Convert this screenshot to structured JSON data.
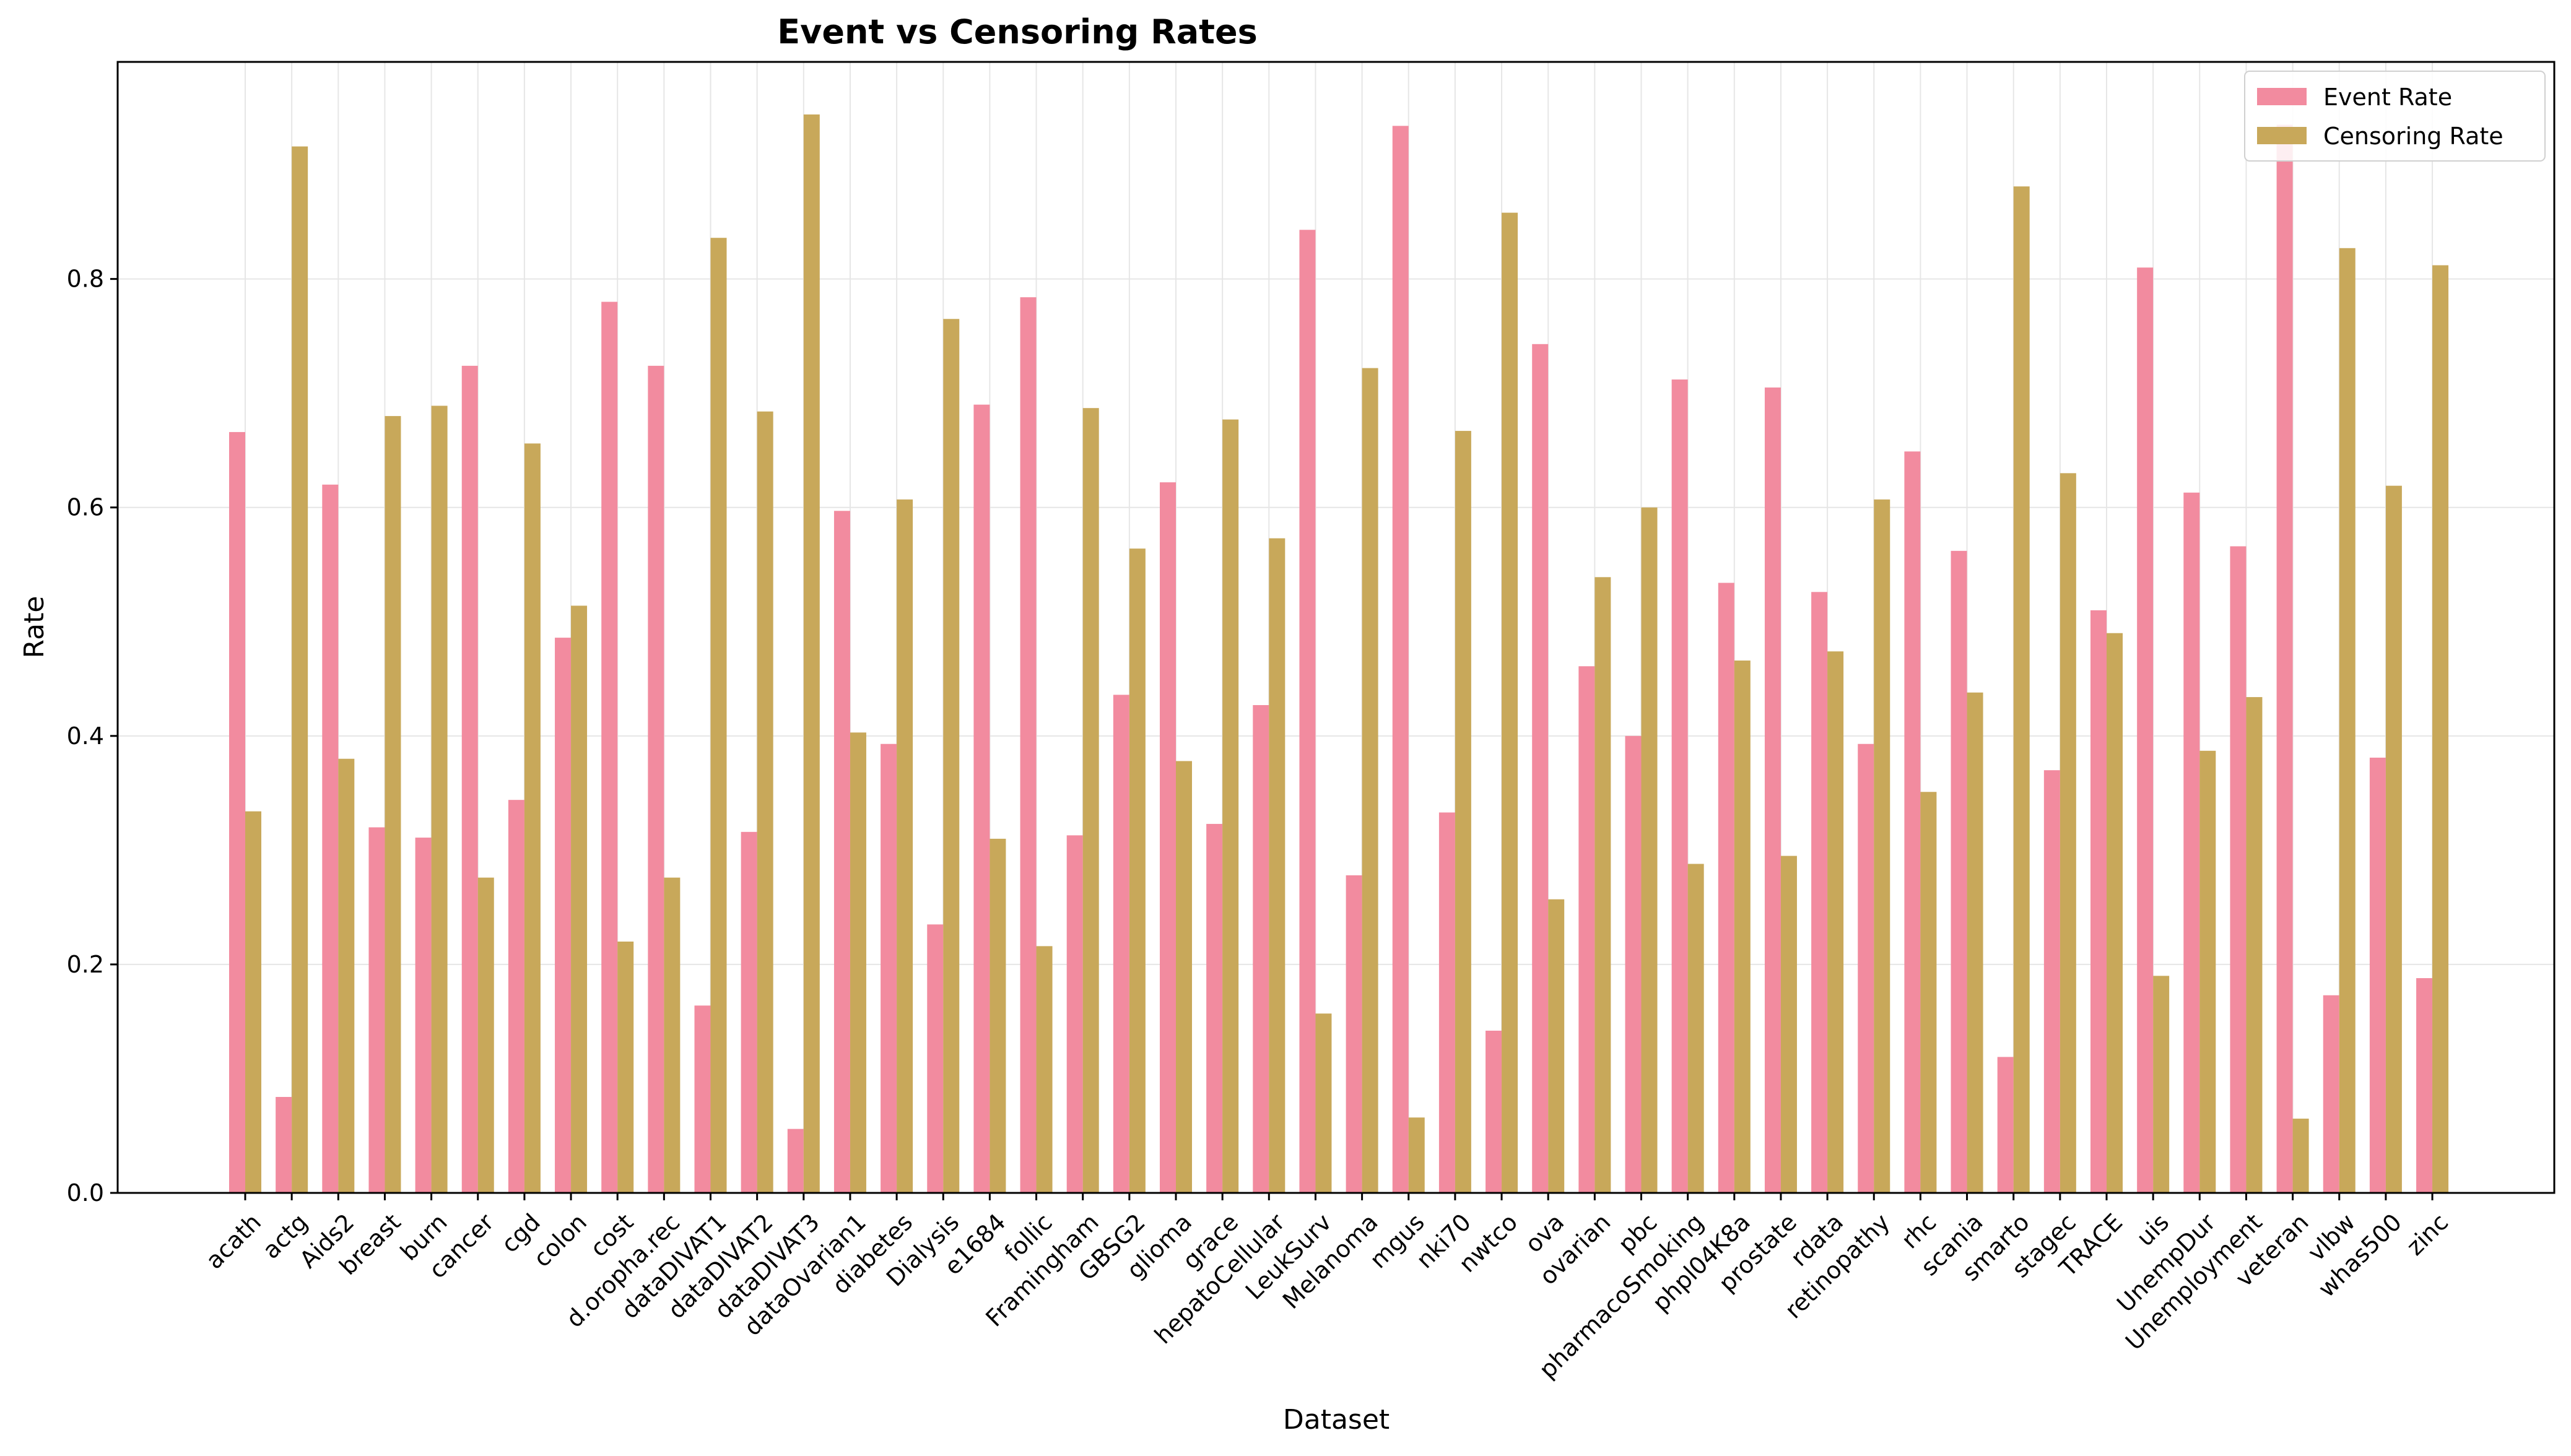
{
  "chart_data": {
    "type": "bar",
    "title": "Event vs Censoring Rates",
    "xlabel": "Dataset",
    "ylabel": "Rate",
    "ylim": [
      0,
      0.99
    ],
    "yticks": [
      "0.0",
      "0.2",
      "0.4",
      "0.6",
      "0.8"
    ],
    "grid": true,
    "legend_position": "top-right",
    "categories": [
      "acath",
      "actg",
      "Aids2",
      "breast",
      "burn",
      "cancer",
      "cgd",
      "colon",
      "cost",
      "d.oropha.rec",
      "dataDIVAT1",
      "dataDIVAT2",
      "dataDIVAT3",
      "dataOvarian1",
      "diabetes",
      "Dialysis",
      "e1684",
      "follic",
      "Framingham",
      "GBSG2",
      "glioma",
      "grace",
      "hepatoCellular",
      "LeukSurv",
      "Melanoma",
      "mgus",
      "nki70",
      "nwtco",
      "ova",
      "ovarian",
      "pbc",
      "pharmacoSmoking",
      "phpl04K8a",
      "prostate",
      "rdata",
      "retinopathy",
      "rhc",
      "scania",
      "smarto",
      "stagec",
      "TRACE",
      "uis",
      "UnempDur",
      "Unemployment",
      "veteran",
      "vlbw",
      "whas500",
      "zinc"
    ],
    "series": [
      {
        "name": "Event Rate",
        "color": "#f28b9f",
        "values": [
          0.666,
          0.084,
          0.62,
          0.32,
          0.311,
          0.724,
          0.344,
          0.486,
          0.78,
          0.724,
          0.164,
          0.316,
          0.056,
          0.597,
          0.393,
          0.235,
          0.69,
          0.784,
          0.313,
          0.436,
          0.622,
          0.323,
          0.427,
          0.843,
          0.278,
          0.934,
          0.333,
          0.142,
          0.743,
          0.461,
          0.4,
          0.712,
          0.534,
          0.705,
          0.526,
          0.393,
          0.649,
          0.562,
          0.119,
          0.37,
          0.51,
          0.81,
          0.613,
          0.566,
          0.935,
          0.173,
          0.381,
          0.188
        ]
      },
      {
        "name": "Censoring Rate",
        "color": "#c8a85a",
        "values": [
          0.334,
          0.916,
          0.38,
          0.68,
          0.689,
          0.276,
          0.656,
          0.514,
          0.22,
          0.276,
          0.836,
          0.684,
          0.944,
          0.403,
          0.607,
          0.765,
          0.31,
          0.216,
          0.687,
          0.564,
          0.378,
          0.677,
          0.573,
          0.157,
          0.722,
          0.066,
          0.667,
          0.858,
          0.257,
          0.539,
          0.6,
          0.288,
          0.466,
          0.295,
          0.474,
          0.607,
          0.351,
          0.438,
          0.881,
          0.63,
          0.49,
          0.19,
          0.387,
          0.434,
          0.065,
          0.827,
          0.619,
          0.812
        ]
      }
    ]
  }
}
